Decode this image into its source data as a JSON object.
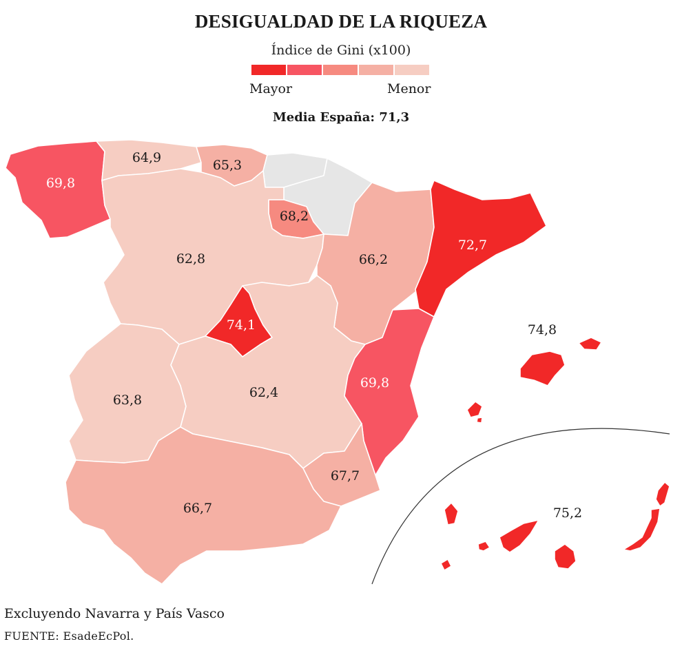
{
  "title": "DESIGUALDAD DE LA RIQUEZA",
  "legend": {
    "title": "Índice de Gini (x100)",
    "low_label": "Mayor",
    "high_label": "Menor",
    "colors": [
      "#f12828",
      "#f75562",
      "#f68a80",
      "#f5b0a4",
      "#f6cdc2"
    ]
  },
  "mean_label": "Media España: 71,3",
  "regions": [
    {
      "name": "Galicia",
      "value": "69,8",
      "color": "#f75562"
    },
    {
      "name": "Asturias",
      "value": "64,9",
      "color": "#f6cdc2"
    },
    {
      "name": "Cantabria",
      "value": "65,3",
      "color": "#f5b0a4"
    },
    {
      "name": "País Vasco",
      "value": "",
      "color": "#e6e6e6"
    },
    {
      "name": "Navarra",
      "value": "",
      "color": "#e6e6e6"
    },
    {
      "name": "La Rioja",
      "value": "68,2",
      "color": "#f68a80"
    },
    {
      "name": "Castilla y León",
      "value": "62,8",
      "color": "#f6cdc2"
    },
    {
      "name": "Aragón",
      "value": "66,2",
      "color": "#f5b0a4"
    },
    {
      "name": "Cataluña",
      "value": "72,7",
      "color": "#f12828"
    },
    {
      "name": "Madrid",
      "value": "74,1",
      "color": "#f12828"
    },
    {
      "name": "Extremadura",
      "value": "63,8",
      "color": "#f6cdc2"
    },
    {
      "name": "Castilla-La Mancha",
      "value": "62,4",
      "color": "#f6cdc2"
    },
    {
      "name": "Comunidad Valenciana",
      "value": "69,8",
      "color": "#f75562"
    },
    {
      "name": "Región de Murcia",
      "value": "67,7",
      "color": "#f5b0a4"
    },
    {
      "name": "Andalucía",
      "value": "66,7",
      "color": "#f5b0a4"
    },
    {
      "name": "Islas Baleares",
      "value": "74,8",
      "color": "#f12828"
    },
    {
      "name": "Canarias",
      "value": "75,2",
      "color": "#f12828"
    }
  ],
  "note": "Excluyendo Navarra y País Vasco",
  "source_label": "FUENTE:",
  "source": "EsadeEcPol."
}
